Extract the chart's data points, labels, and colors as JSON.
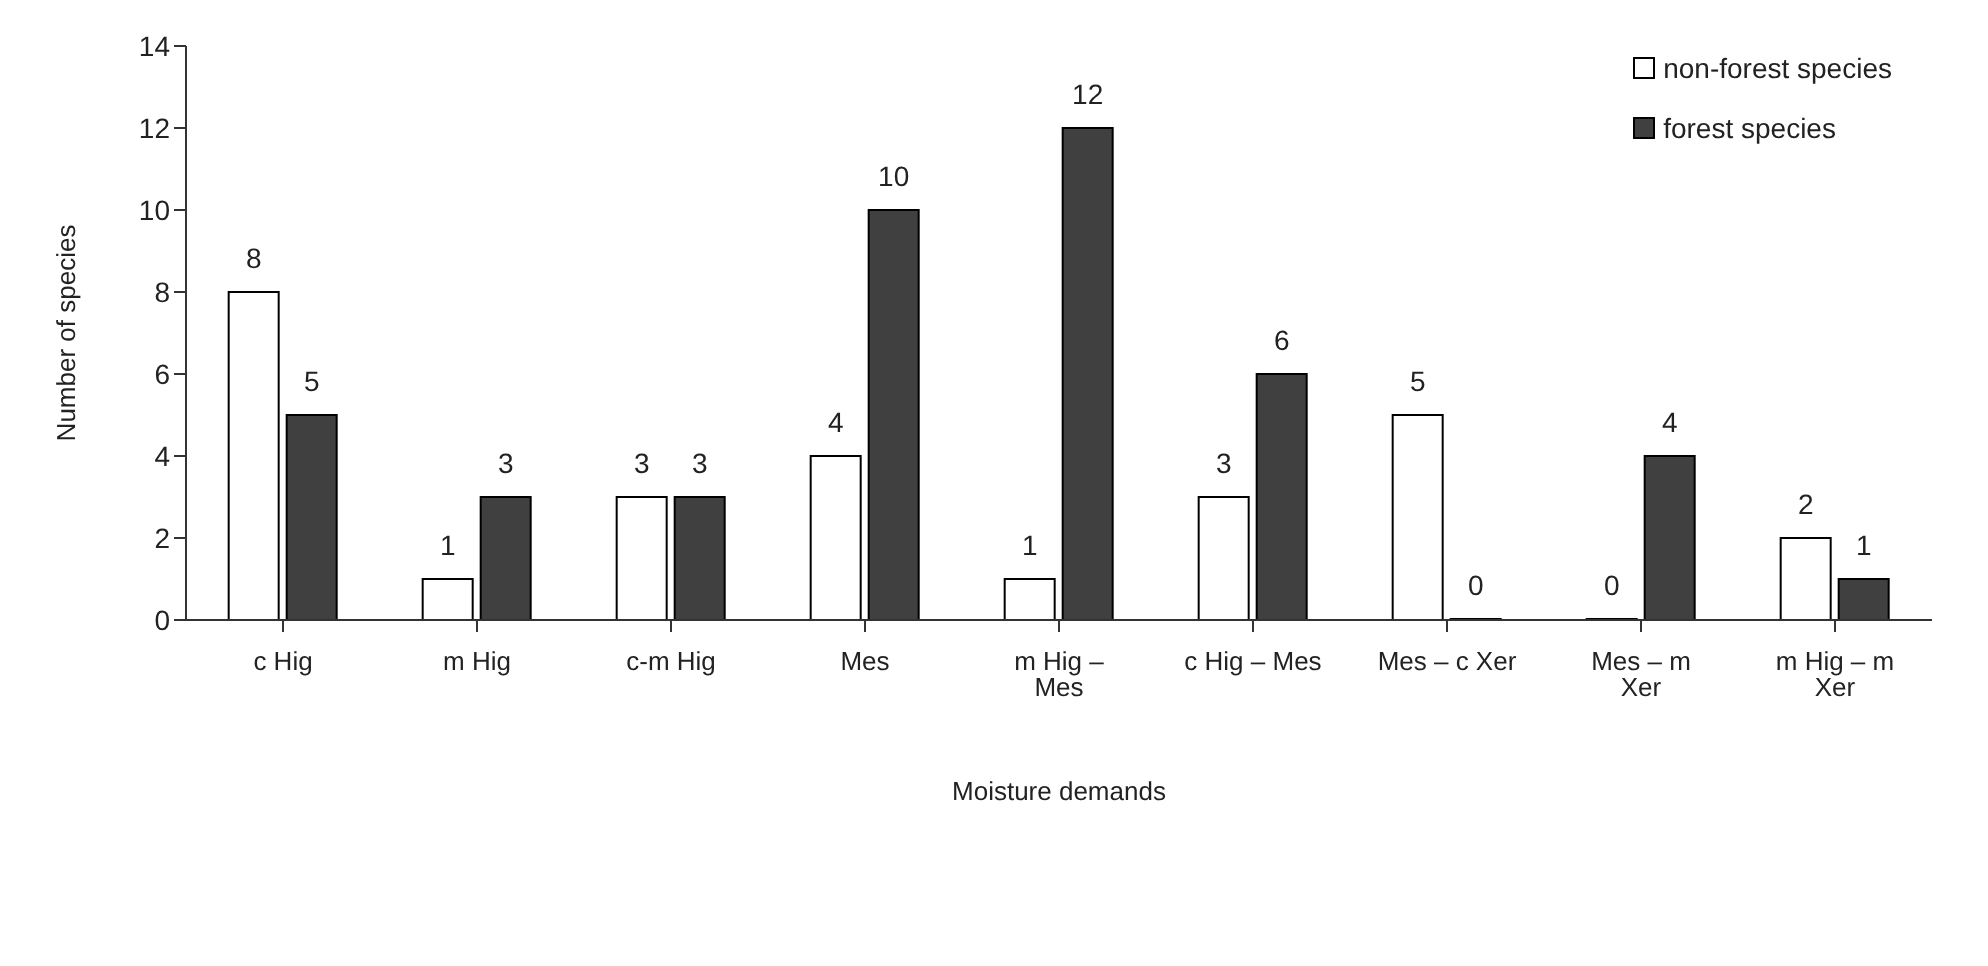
{
  "chart_data": {
    "type": "bar",
    "xlabel": "Moisture demands",
    "ylabel": "Number of species",
    "categories": [
      "c Hig",
      "m Hig",
      "c-m Hig",
      "Mes",
      "m Hig – Mes",
      "c Hig – Mes",
      "Mes – c Xer",
      "Mes – m Xer",
      "m Hig – m Xer"
    ],
    "series": [
      {
        "name": "non-forest species",
        "color": "#ffffff",
        "values": [
          8,
          1,
          3,
          4,
          1,
          3,
          5,
          0,
          2
        ]
      },
      {
        "name": "forest species",
        "color": "#404040",
        "values": [
          5,
          3,
          3,
          10,
          12,
          6,
          0,
          4,
          1
        ]
      }
    ],
    "ylim": [
      0,
      14
    ],
    "yticks": [
      0,
      2,
      4,
      6,
      8,
      10,
      12,
      14
    ],
    "grid": false,
    "legend": "top right",
    "data_labels": true
  }
}
